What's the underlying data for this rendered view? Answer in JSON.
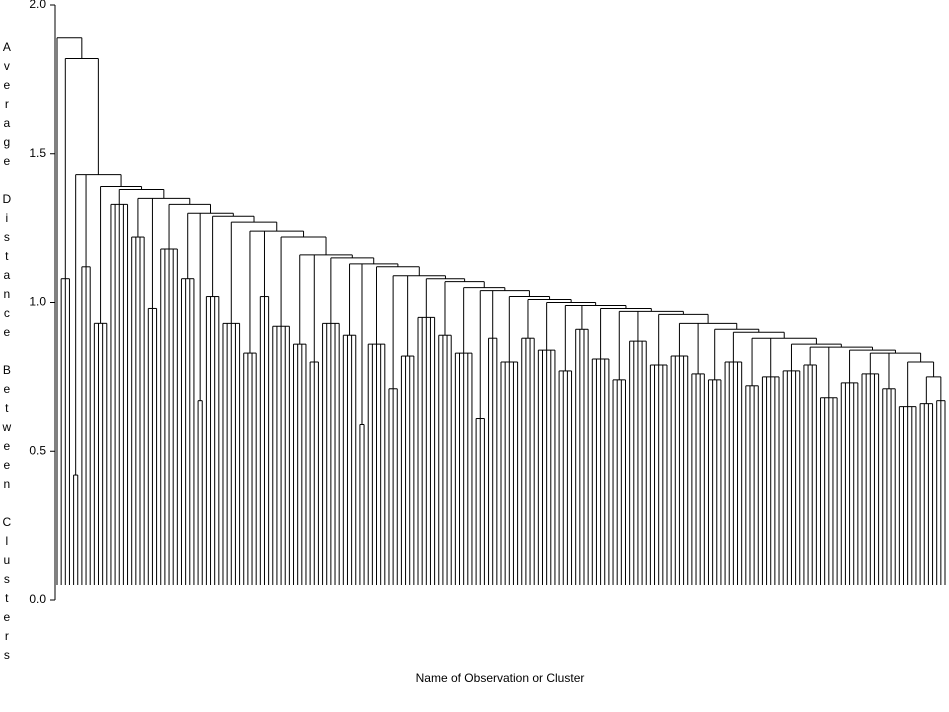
{
  "chart_data": {
    "type": "dendrogram",
    "ylabel": "Average Distance Between Clusters",
    "xlabel": "Name of Observation or Cluster",
    "ylim": [
      0,
      2
    ],
    "yticks": [
      {
        "value": 0,
        "label": "0.0"
      },
      {
        "value": 0.5,
        "label": "0.5"
      },
      {
        "value": 1,
        "label": "1.0"
      },
      {
        "value": 1.5,
        "label": "1.5"
      },
      {
        "value": 2,
        "label": "2.0"
      }
    ],
    "color": "#000000",
    "groups": [
      {
        "height": 1.89,
        "clusters": [
          {
            "height": 0,
            "size": 1
          }
        ]
      },
      {
        "height": 1.82,
        "clusters": [
          {
            "height": 1.08,
            "size": 3
          }
        ]
      },
      {
        "height": 1.43,
        "clusters": [
          {
            "height": 0.42,
            "size": 2
          },
          {
            "height": 1.12,
            "size": 3
          }
        ]
      },
      {
        "height": 1.39,
        "clusters": [
          {
            "height": 0.93,
            "size": 4
          }
        ]
      },
      {
        "height": 1.38,
        "clusters": [
          {
            "height": 1.33,
            "size": 5
          }
        ]
      },
      {
        "height": 1.35,
        "clusters": [
          {
            "height": 1.22,
            "size": 4
          },
          {
            "height": 0.98,
            "size": 3
          }
        ]
      },
      {
        "height": 1.33,
        "clusters": [
          {
            "height": 1.18,
            "size": 5
          }
        ]
      },
      {
        "height": 1.3,
        "clusters": [
          {
            "height": 1.08,
            "size": 4
          },
          {
            "height": 0.67,
            "size": 2
          }
        ]
      },
      {
        "height": 1.29,
        "clusters": [
          {
            "height": 1.02,
            "size": 4
          }
        ]
      },
      {
        "height": 1.27,
        "clusters": [
          {
            "height": 0.93,
            "size": 5
          }
        ]
      },
      {
        "height": 1.24,
        "clusters": [
          {
            "height": 0.83,
            "size": 4
          },
          {
            "height": 1.02,
            "size": 3
          }
        ]
      },
      {
        "height": 1.22,
        "clusters": [
          {
            "height": 0.92,
            "size": 5
          }
        ]
      },
      {
        "height": 1.16,
        "clusters": [
          {
            "height": 0.86,
            "size": 4
          },
          {
            "height": 0.8,
            "size": 3
          }
        ]
      },
      {
        "height": 1.15,
        "clusters": [
          {
            "height": 0.93,
            "size": 5
          }
        ]
      },
      {
        "height": 1.13,
        "clusters": [
          {
            "height": 0.89,
            "size": 4
          },
          {
            "height": 0.59,
            "size": 2
          }
        ]
      },
      {
        "height": 1.12,
        "clusters": [
          {
            "height": 0.86,
            "size": 5
          }
        ]
      },
      {
        "height": 1.09,
        "clusters": [
          {
            "height": 0.71,
            "size": 3
          },
          {
            "height": 0.82,
            "size": 4
          }
        ]
      },
      {
        "height": 1.08,
        "clusters": [
          {
            "height": 0.95,
            "size": 5
          }
        ]
      },
      {
        "height": 1.07,
        "clusters": [
          {
            "height": 0.89,
            "size": 4
          }
        ]
      },
      {
        "height": 1.05,
        "clusters": [
          {
            "height": 0.83,
            "size": 5
          }
        ]
      },
      {
        "height": 1.04,
        "clusters": [
          {
            "height": 0.61,
            "size": 3
          },
          {
            "height": 0.88,
            "size": 3
          }
        ]
      },
      {
        "height": 1.02,
        "clusters": [
          {
            "height": 0.8,
            "size": 5
          }
        ]
      },
      {
        "height": 1.01,
        "clusters": [
          {
            "height": 0.88,
            "size": 4
          }
        ]
      },
      {
        "height": 1.0,
        "clusters": [
          {
            "height": 0.84,
            "size": 5
          }
        ]
      },
      {
        "height": 0.99,
        "clusters": [
          {
            "height": 0.77,
            "size": 4
          },
          {
            "height": 0.91,
            "size": 4
          }
        ]
      },
      {
        "height": 0.98,
        "clusters": [
          {
            "height": 0.81,
            "size": 5
          }
        ]
      },
      {
        "height": 0.97,
        "clusters": [
          {
            "height": 0.74,
            "size": 4
          },
          {
            "height": 0.87,
            "size": 5
          }
        ]
      },
      {
        "height": 0.96,
        "clusters": [
          {
            "height": 0.79,
            "size": 5
          }
        ]
      },
      {
        "height": 0.93,
        "clusters": [
          {
            "height": 0.82,
            "size": 5
          },
          {
            "height": 0.76,
            "size": 4
          }
        ]
      },
      {
        "height": 0.91,
        "clusters": [
          {
            "height": 0.74,
            "size": 4
          }
        ]
      },
      {
        "height": 0.9,
        "clusters": [
          {
            "height": 0.8,
            "size": 5
          }
        ]
      },
      {
        "height": 0.88,
        "clusters": [
          {
            "height": 0.72,
            "size": 4
          },
          {
            "height": 0.75,
            "size": 5
          }
        ]
      },
      {
        "height": 0.86,
        "clusters": [
          {
            "height": 0.77,
            "size": 5
          }
        ]
      },
      {
        "height": 0.85,
        "clusters": [
          {
            "height": 0.79,
            "size": 4
          },
          {
            "height": 0.68,
            "size": 5
          }
        ]
      },
      {
        "height": 0.84,
        "clusters": [
          {
            "height": 0.73,
            "size": 5
          }
        ]
      },
      {
        "height": 0.83,
        "clusters": [
          {
            "height": 0.76,
            "size": 5
          },
          {
            "height": 0.71,
            "size": 4
          }
        ]
      },
      {
        "height": 0.8,
        "clusters": [
          {
            "height": 0.65,
            "size": 5
          }
        ]
      },
      {
        "height": 0.75,
        "clusters": [
          {
            "height": 0.66,
            "size": 4
          },
          {
            "height": 0.67,
            "size": 3
          }
        ]
      }
    ]
  }
}
